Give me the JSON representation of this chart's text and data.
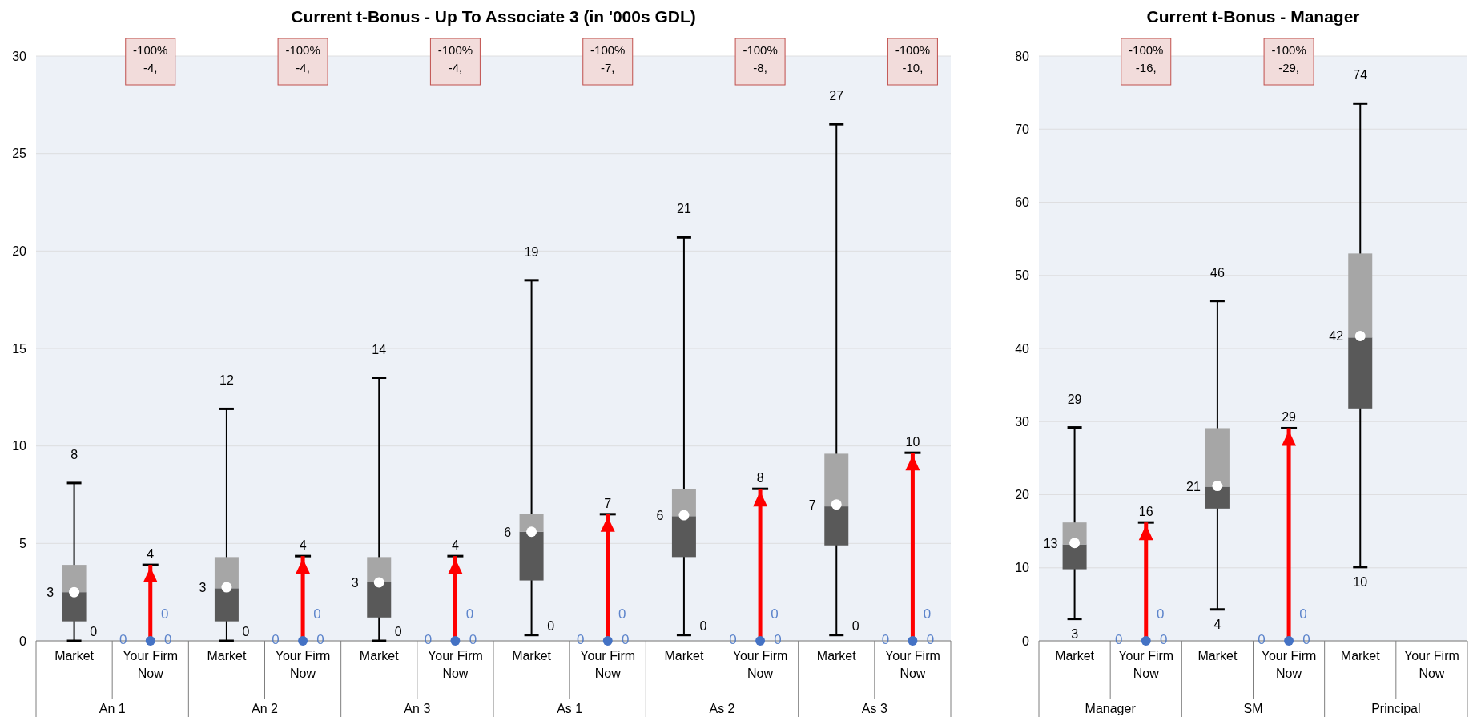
{
  "chart_data": [
    {
      "type": "box",
      "title": "Current t-Bonus - Up To Associate 3 (in '000s GDL)",
      "categories": [
        "Market",
        "Your Firm Now",
        "Market",
        "Your Firm Now",
        "Market",
        "Your Firm Now",
        "Market",
        "Your Firm Now",
        "Market",
        "Your Firm Now",
        "Market",
        "Your Firm Now"
      ],
      "ylim": [
        0,
        30
      ],
      "yticks": [
        0,
        5,
        10,
        15,
        20,
        25,
        30
      ],
      "grid": "y",
      "annotations": [
        "An 1",
        "An 2",
        "An 3",
        "As 1",
        "As 2",
        "As 3",
        "-100%\n-4,",
        "-100%\n-4,",
        "-100%\n-4,",
        "-100%\n-7,",
        "-100%\n-8,",
        "-100%\n-10,",
        "0",
        "0",
        "0",
        "0",
        "0",
        "0",
        {
          "text": "8",
          "y": 8.1
        },
        {
          "text": "12",
          "y": 11.9
        },
        {
          "text": "14",
          "y": 13.5
        },
        {
          "text": "19",
          "y": 18.5
        },
        {
          "text": "21",
          "y": 20.7
        },
        {
          "text": "27",
          "y": 26.5
        }
      ],
      "series": [
        {
          "type": "box",
          "color": "#595959",
          "boxes": [
            {
              "low": 0,
              "q1": 1.0,
              "median": 2.5,
              "q3": 3.9,
              "high": 8.1
            },
            null,
            {
              "low": 0,
              "q1": 1.0,
              "median": 2.7,
              "q3": 4.3,
              "high": 11.9
            },
            null,
            {
              "low": 0,
              "q1": 1.2,
              "median": 3.0,
              "q3": 4.3,
              "high": 13.5
            },
            null,
            {
              "low": 0.3,
              "q1": 3.1,
              "median": 5.6,
              "q3": 6.5,
              "high": 18.5
            },
            null,
            {
              "low": 0.3,
              "q1": 4.3,
              "median": 6.4,
              "q3": 7.8,
              "high": 20.7
            },
            null,
            {
              "low": 0.3,
              "q1": 4.9,
              "median": 6.9,
              "q3": 9.6,
              "high": 26.5
            },
            null
          ]
        },
        {
          "type": "scatter",
          "color": "#ffffff",
          "marker": "circle",
          "values": [
            2.5,
            null,
            2.75,
            null,
            3.0,
            null,
            5.6,
            null,
            6.45,
            null,
            7.0,
            null
          ],
          "value_labels": [
            "3",
            null,
            "3",
            null,
            "3",
            null,
            "6",
            null,
            "6",
            null,
            "7",
            null
          ]
        },
        {
          "type": "bar",
          "color": "#ff0000",
          "values": [
            null,
            3.9,
            null,
            4.35,
            null,
            4.35,
            null,
            6.5,
            null,
            7.8,
            null,
            9.65
          ],
          "value_labels": [
            null,
            "4",
            null,
            "4",
            null,
            "4",
            null,
            "7",
            null,
            "8",
            null,
            "10"
          ]
        },
        {
          "type": "scatter",
          "color": "#4472c4",
          "marker": "circle",
          "values": [
            null,
            0,
            null,
            0,
            null,
            0,
            null,
            0,
            null,
            0,
            null,
            0
          ],
          "value_labels": [
            null,
            "0",
            null,
            "0",
            null,
            "0",
            null,
            "0",
            null,
            "0",
            null,
            "0"
          ]
        }
      ]
    },
    {
      "type": "box",
      "title": "Current t-Bonus - Manager",
      "categories": [
        "Market",
        "Your Firm Now",
        "Market",
        "Your Firm Now",
        "Market",
        "Your Firm Now"
      ],
      "ylim": [
        0,
        80
      ],
      "yticks": [
        0,
        10,
        20,
        30,
        40,
        50,
        60,
        70,
        80
      ],
      "grid": "y",
      "annotations": [
        "Manager",
        "SM",
        "Principal",
        "-100%\n-16,",
        "-100%\n-29,",
        "3",
        "4",
        "10",
        {
          "text": "29",
          "y": 29.2
        },
        {
          "text": "46",
          "y": 46.5
        },
        {
          "text": "74",
          "y": 73.5
        }
      ],
      "series": [
        {
          "type": "box",
          "color": "#595959",
          "boxes": [
            {
              "low": 3,
              "q1": 9.8,
              "median": 13.2,
              "q3": 16.2,
              "high": 29.2
            },
            null,
            {
              "low": 4.3,
              "q1": 18.1,
              "median": 21.1,
              "q3": 29.1,
              "high": 46.5
            },
            null,
            {
              "low": 10.1,
              "q1": 31.8,
              "median": 41.5,
              "q3": 53,
              "high": 73.5
            },
            null
          ]
        },
        {
          "type": "scatter",
          "color": "#ffffff",
          "marker": "circle",
          "values": [
            13.4,
            null,
            21.2,
            null,
            41.7,
            null
          ],
          "value_labels": [
            "13",
            null,
            "21",
            null,
            "42",
            null
          ]
        },
        {
          "type": "bar",
          "color": "#ff0000",
          "values": [
            null,
            16.2,
            null,
            29.1,
            null,
            null
          ],
          "value_labels": [
            null,
            "16",
            null,
            "29",
            null,
            null
          ]
        },
        {
          "type": "scatter",
          "color": "#4472c4",
          "marker": "circle",
          "values": [
            null,
            0,
            null,
            0,
            null,
            null
          ],
          "value_labels": [
            null,
            "0",
            null,
            "0",
            null,
            null
          ]
        }
      ]
    }
  ]
}
